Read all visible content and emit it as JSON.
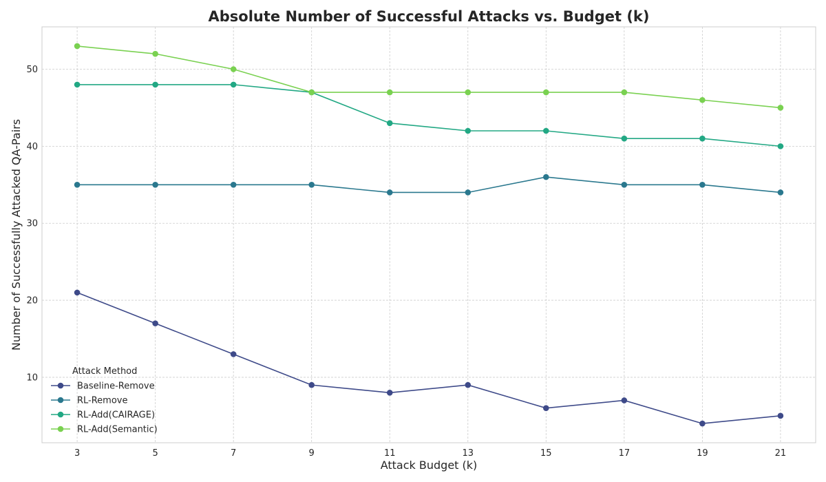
{
  "chart_data": {
    "type": "line",
    "title": "Absolute Number of Successful Attacks vs. Budget (k)",
    "xlabel": "Attack Budget (k)",
    "ylabel": "Number of Successfully Attacked QA-Pairs",
    "x": [
      3,
      5,
      7,
      9,
      11,
      13,
      15,
      17,
      19,
      21
    ],
    "xlim": [
      2.1,
      21.9
    ],
    "ylim": [
      1.5,
      55.5
    ],
    "xticks": [
      3,
      5,
      7,
      9,
      11,
      13,
      15,
      17,
      19,
      21
    ],
    "yticks": [
      10,
      20,
      30,
      40,
      50
    ],
    "grid": true,
    "legend": {
      "title": "Attack Method",
      "placement": "lower-left"
    },
    "series": [
      {
        "name": "Baseline-Remove",
        "color": "#3e4a89",
        "values": [
          21,
          17,
          13,
          9,
          8,
          9,
          6,
          7,
          4,
          5
        ]
      },
      {
        "name": "RL-Remove",
        "color": "#2a788e",
        "values": [
          35,
          35,
          35,
          35,
          34,
          34,
          36,
          35,
          35,
          34
        ]
      },
      {
        "name": "RL-Add(CAIRAGE)",
        "color": "#22a884",
        "values": [
          48,
          48,
          48,
          47,
          43,
          42,
          42,
          41,
          41,
          40
        ]
      },
      {
        "name": "RL-Add(Semantic)",
        "color": "#7ad151",
        "values": [
          53,
          52,
          50,
          47,
          47,
          47,
          47,
          47,
          46,
          45
        ]
      }
    ]
  }
}
